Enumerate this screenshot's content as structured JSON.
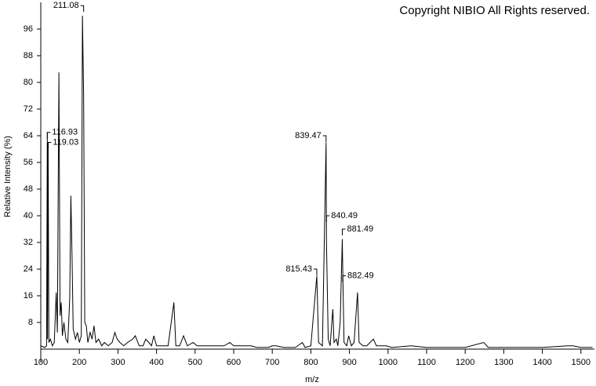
{
  "chart_data": {
    "type": "line",
    "title": "Copyright NIBIO All Rights reserved.",
    "x_label": "m/z",
    "y_label": "Relative Intensity (%)",
    "color": "#000000",
    "xlim": [
      100,
      1535
    ],
    "ylim": [
      0,
      104
    ],
    "xticks": [
      100,
      200,
      300,
      400,
      500,
      600,
      700,
      800,
      900,
      1000,
      1100,
      1200,
      1300,
      1400,
      1500
    ],
    "yticks": [
      8,
      16,
      24,
      32,
      40,
      48,
      56,
      64,
      72,
      80,
      88,
      96
    ],
    "x": [
      100,
      110,
      115,
      116.93,
      117.5,
      119.03,
      121,
      125,
      130,
      135,
      140,
      143,
      147,
      150,
      153,
      156,
      160,
      165,
      170,
      175,
      178,
      181,
      184,
      190,
      195,
      200,
      205,
      208,
      211.08,
      214,
      218,
      222,
      228,
      233,
      238,
      243,
      250,
      258,
      265,
      275,
      285,
      292,
      298,
      305,
      315,
      325,
      338,
      345,
      355,
      365,
      372,
      380,
      387,
      393,
      400,
      410,
      420,
      430,
      445,
      450,
      460,
      470,
      480,
      495,
      505,
      520,
      535,
      550,
      560,
      575,
      590,
      600,
      620,
      645,
      660,
      690,
      700,
      710,
      730,
      760,
      778,
      785,
      800,
      815.43,
      820,
      830,
      839.47,
      840.49,
      845,
      850,
      857,
      860,
      866,
      870,
      876,
      881.49,
      882.49,
      886,
      893,
      898,
      905,
      912,
      921,
      925,
      935,
      945,
      962,
      970,
      980,
      995,
      1010,
      1060,
      1100,
      1200,
      1248,
      1260,
      1300,
      1340,
      1400,
      1465,
      1480,
      1500,
      1530
    ],
    "values": [
      1,
      0.5,
      1,
      65,
      3,
      62,
      2,
      3,
      1,
      2,
      17,
      5,
      83,
      10,
      14,
      4,
      8,
      3,
      2,
      15,
      46,
      28,
      6,
      3,
      5,
      2,
      4,
      100,
      76,
      8,
      7,
      2,
      5,
      3,
      7,
      2,
      3,
      1,
      2,
      1,
      2,
      5,
      3,
      2,
      1,
      2,
      3,
      4,
      1,
      1,
      3,
      2,
      1,
      4,
      1,
      1,
      1,
      1,
      14,
      1,
      1,
      4,
      1,
      2,
      1,
      1,
      1,
      1,
      1,
      1,
      2,
      1,
      1,
      1,
      0.5,
      0.5,
      1,
      1,
      0.5,
      0.5,
      2,
      0.5,
      1,
      22,
      2,
      1,
      62,
      32,
      3,
      1,
      12,
      2,
      3,
      1,
      8,
      33,
      25,
      2,
      1,
      4,
      1,
      2,
      17,
      2,
      1,
      1,
      3,
      1,
      1,
      1,
      0.5,
      1,
      0.5,
      0.5,
      2,
      0.5,
      0.5,
      0.5,
      0.5,
      1,
      1,
      0.5,
      0.5
    ],
    "annotations": [
      {
        "x": 211.08,
        "y": 103
      },
      {
        "x": 116.93,
        "y": 65
      },
      {
        "x": 119.03,
        "y": 62
      },
      {
        "x": 839.47,
        "y": 64
      },
      {
        "x": 840.49,
        "y": 40
      },
      {
        "x": 881.49,
        "y": 36
      },
      {
        "x": 815.43,
        "y": 24
      },
      {
        "x": 882.49,
        "y": 22
      }
    ]
  }
}
